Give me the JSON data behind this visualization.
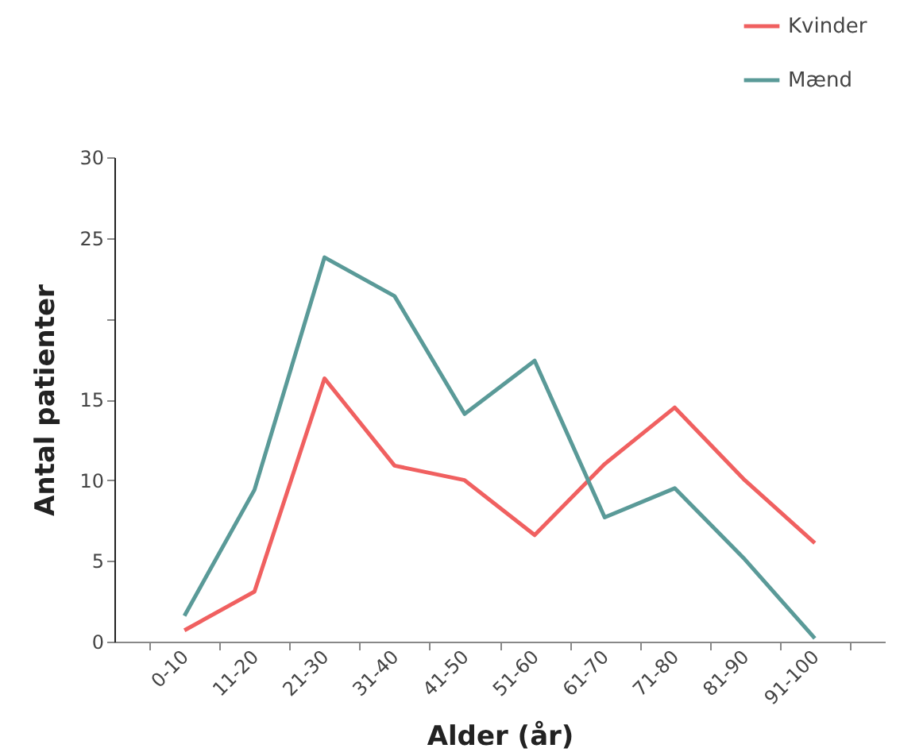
{
  "chart_data": {
    "type": "line",
    "xlabel": "Alder (år)",
    "ylabel": "Antal patienter",
    "categories": [
      "0-10",
      "11-20",
      "21-30",
      "31-40",
      "41-50",
      "51-60",
      "61-70",
      "71-80",
      "81-90",
      "91-100"
    ],
    "series": [
      {
        "name": "Kvinder",
        "color": "#f06060",
        "values": [
          0.7,
          3.1,
          16.3,
          10.9,
          10.0,
          6.6,
          11.0,
          14.5,
          10.0,
          6.1
        ]
      },
      {
        "name": "Mænd",
        "color": "#5a9a98",
        "values": [
          1.6,
          9.4,
          23.8,
          21.4,
          14.1,
          17.4,
          7.7,
          9.5,
          5.1,
          0.2
        ]
      }
    ],
    "ylim": [
      0,
      30
    ],
    "yticks": [
      0,
      5,
      10,
      15,
      {
        "value": 20,
        "label": null
      },
      25,
      30
    ],
    "grid": false,
    "legend": "top right",
    "marker": "none",
    "line_style": "solid"
  }
}
